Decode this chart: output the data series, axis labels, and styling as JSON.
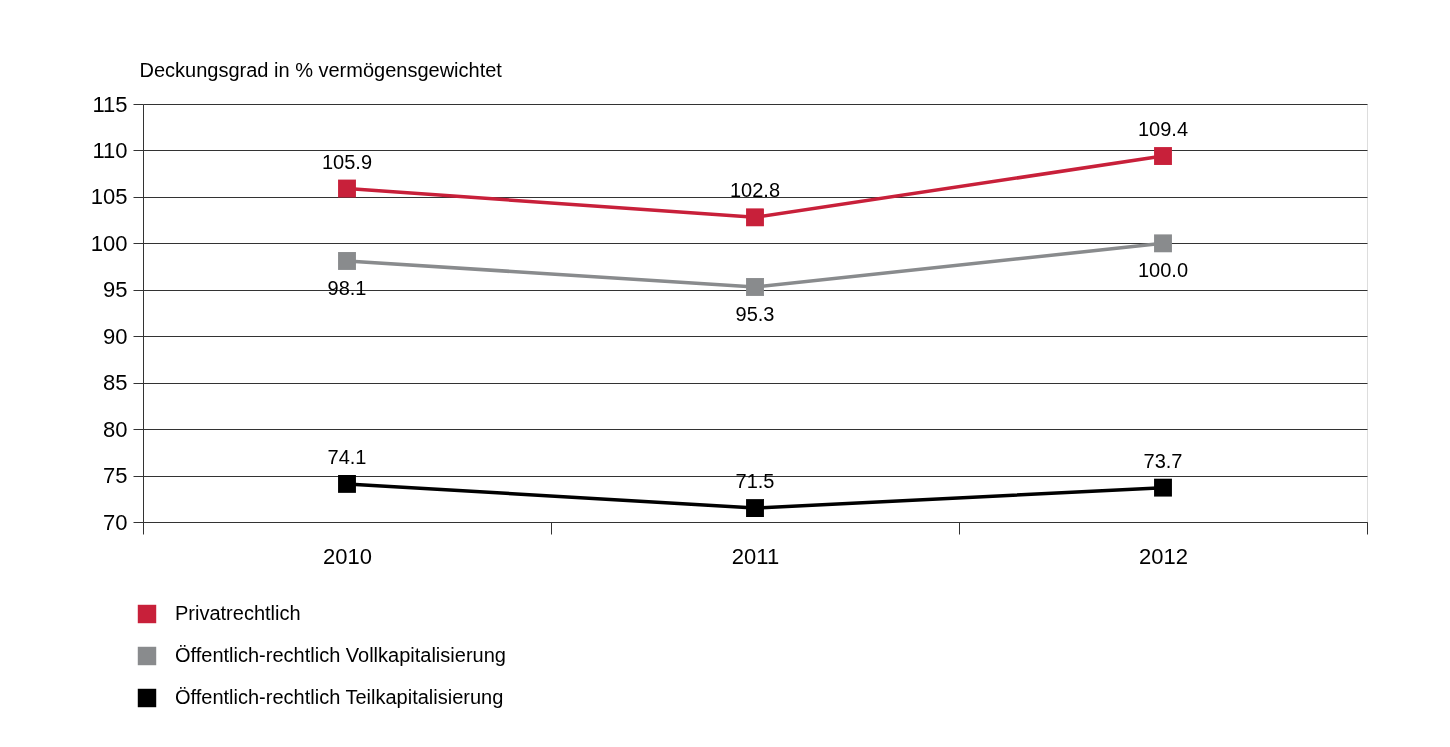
{
  "chart_data": {
    "type": "line",
    "ylabel": "Deckungsgrad in % vermögensgewichtet",
    "categories": [
      "2010",
      "2011",
      "2012"
    ],
    "series": [
      {
        "name": "Privatrechtlich",
        "color": "#c8203a",
        "values": [
          105.9,
          102.8,
          109.4
        ],
        "value_labels": [
          "105.9",
          "102.8",
          "109.4"
        ]
      },
      {
        "name": "Öffentlich-rechtlich Vollkapitalisierung",
        "color": "#898b8d",
        "values": [
          98.1,
          95.3,
          100.0
        ],
        "value_labels": [
          "98.1",
          "95.3",
          "100.0"
        ]
      },
      {
        "name": "Öffentlich-rechtlich Teilkapitalisierung",
        "color": "#000000",
        "values": [
          74.1,
          71.5,
          73.7
        ],
        "value_labels": [
          "74.1",
          "71.5",
          "73.7"
        ]
      }
    ],
    "ylim": [
      70,
      115
    ],
    "yticks": [
      70,
      75,
      80,
      85,
      90,
      95,
      100,
      105,
      110,
      115
    ],
    "grid": "y",
    "legend": "bottom",
    "marker": "square",
    "line_style": "solid"
  }
}
